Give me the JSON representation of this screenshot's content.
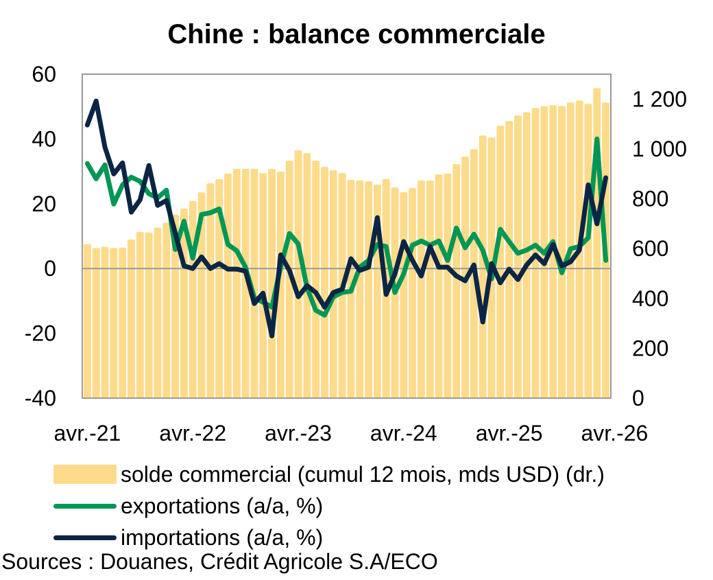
{
  "chart_data": {
    "type": "bar+line",
    "title": "Chine : balance commerciale",
    "x_tick_labels": [
      "avr.-21",
      "avr.-22",
      "avr.-23",
      "avr.-24",
      "avr.-25",
      "avr.-26"
    ],
    "x_start": "avr.-21",
    "n_months": 60,
    "y_left": {
      "min": -40,
      "max": 60,
      "ticks": [
        60,
        40,
        20,
        0,
        -20,
        -40
      ],
      "tick_labels": [
        "60",
        "40",
        "20",
        "0",
        "-20",
        "-40"
      ]
    },
    "y_right": {
      "min": 0,
      "max": 1300,
      "ticks": [
        1200,
        1000,
        800,
        600,
        400,
        200,
        0
      ],
      "tick_labels": [
        "1 200",
        "1 000",
        "800",
        "600",
        "400",
        "200",
        "0"
      ]
    },
    "series": [
      {
        "name": "solde commercial (cumul 12 mois, mds USD) (dr.)",
        "type": "bar",
        "axis": "right",
        "color": "#FDDB8A",
        "values": [
          618,
          602,
          607,
          602,
          604,
          637,
          667,
          664,
          684,
          703,
          736,
          760,
          791,
          826,
          862,
          879,
          901,
          920,
          920,
          920,
          903,
          920,
          909,
          953,
          994,
          983,
          953,
          928,
          914,
          903,
          876,
          873,
          870,
          857,
          879,
          846,
          826,
          843,
          873,
          873,
          898,
          901,
          939,
          969,
          999,
          1054,
          1046,
          1093,
          1112,
          1134,
          1147,
          1164,
          1172,
          1175,
          1172,
          1186,
          1194,
          1181,
          1244,
          1186
        ]
      },
      {
        "name": "exportations (a/a, %)",
        "type": "line",
        "axis": "left",
        "color": "#009655",
        "values": [
          32.4,
          27.7,
          32,
          19.9,
          25.8,
          28.2,
          26.9,
          23.1,
          21.8,
          24.2,
          5.9,
          14.6,
          3.2,
          16.7,
          17.2,
          18.4,
          7.4,
          5.5,
          0.4,
          -9,
          -10.4,
          -11.9,
          0.4,
          10.8,
          7.6,
          -5.9,
          -12.9,
          -14.4,
          -8.7,
          -7.4,
          -7,
          0.4,
          2.5,
          7.4,
          6.8,
          -7.4,
          -1.7,
          7.2,
          8.5,
          7.2,
          8.5,
          2.5,
          12.5,
          6.4,
          10.6,
          5.7,
          -3.2,
          12.1,
          8.3,
          4.7,
          5.7,
          7.2,
          4.7,
          8.3,
          -1.3,
          6.1,
          6.8,
          9.5,
          40,
          2.5
        ]
      },
      {
        "name": "importations (a/a, %)",
        "type": "line",
        "axis": "left",
        "color": "#0B2545",
        "values": [
          44.3,
          51.7,
          37.5,
          29.2,
          32.6,
          17.4,
          21.2,
          31.8,
          19.5,
          21,
          11,
          0.8,
          0,
          3.6,
          0,
          1.5,
          -0.2,
          -0.2,
          -0.8,
          -10.8,
          -7.6,
          -20.8,
          4.2,
          -0.6,
          -8.7,
          -5.3,
          -7.4,
          -11.9,
          -7.4,
          -6.4,
          3,
          -0.6,
          0.4,
          15.7,
          -8,
          -1.7,
          8.3,
          2.5,
          -2.3,
          6.8,
          0.4,
          0.4,
          -2.3,
          -3.8,
          1.1,
          -16.5,
          1.5,
          -4.4,
          -0.2,
          -3.4,
          1.1,
          4.2,
          1.5,
          7.4,
          0.8,
          2.1,
          5.7,
          25.8,
          13.8,
          28
        ]
      }
    ],
    "legend_position": "bottom-left",
    "grid": false,
    "zero_line": true
  },
  "legend": {
    "items": [
      {
        "label": "solde commercial (cumul 12 mois, mds USD) (dr.)",
        "swatch": "bar",
        "color": "#FDDB8A"
      },
      {
        "label": "exportations (a/a, %)",
        "swatch": "line",
        "color": "#009655"
      },
      {
        "label": "importations (a/a, %)",
        "swatch": "line",
        "color": "#0B2545"
      }
    ]
  },
  "sources": "Sources : Douanes, Crédit Agricole S.A/ECO"
}
